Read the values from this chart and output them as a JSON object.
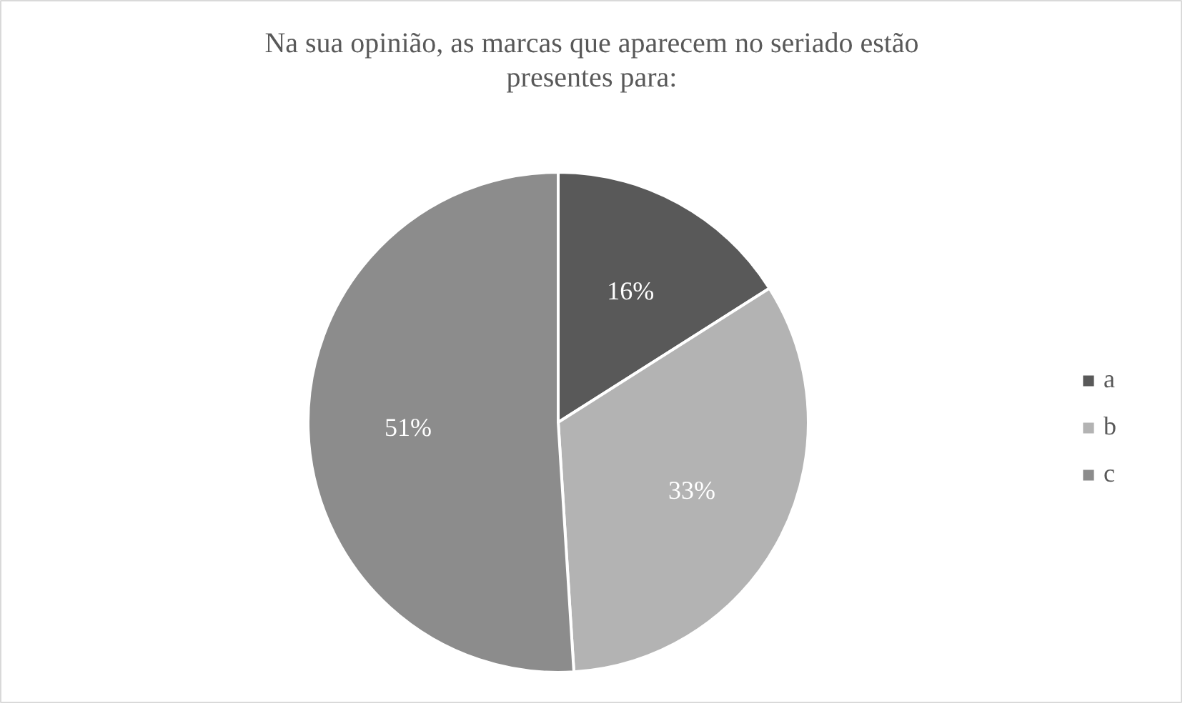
{
  "chart_data": {
    "type": "pie",
    "title": "Na sua opinião, as marcas que aparecem no seriado estão presentes para:",
    "categories": [
      "a",
      "b",
      "c"
    ],
    "values": [
      16,
      33,
      51
    ],
    "colors": [
      "#595959",
      "#b3b3b3",
      "#8c8c8c"
    ],
    "value_labels": [
      "16%",
      "33%",
      "51%"
    ],
    "legend": "right"
  }
}
